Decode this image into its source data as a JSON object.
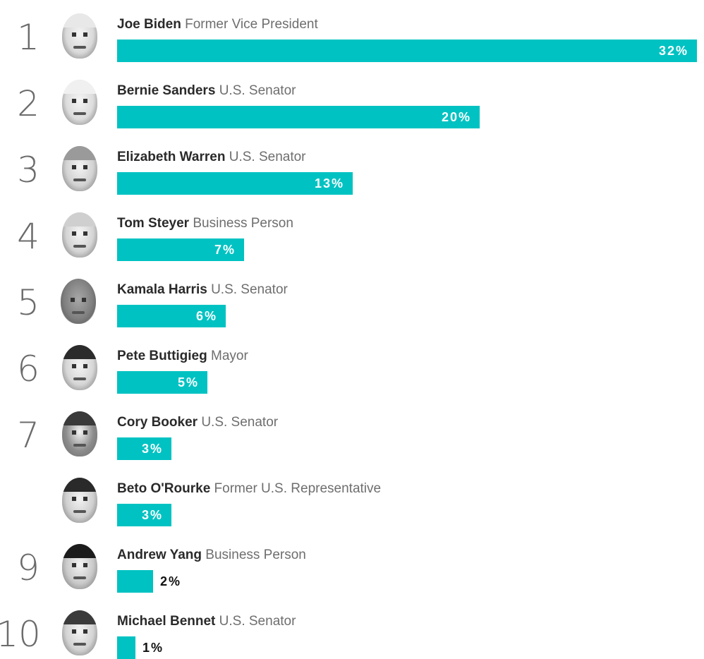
{
  "colors": {
    "bar": "#00c2c2",
    "rank": "#6b6b6b",
    "name": "#2a2a2a",
    "role": "#6e6e6e"
  },
  "chart_data": {
    "type": "bar",
    "orientation": "horizontal",
    "title": "",
    "xlabel": "",
    "ylabel": "",
    "value_unit": "%",
    "xlim": [
      0,
      32
    ],
    "grid": false,
    "legend": "none",
    "rows": [
      {
        "rank": "1",
        "name": "Joe Biden",
        "role": "Former Vice President",
        "value": 32,
        "label": "32%",
        "icon": "joe-biden-portrait-icon"
      },
      {
        "rank": "2",
        "name": "Bernie Sanders",
        "role": "U.S. Senator",
        "value": 20,
        "label": "20%",
        "icon": "bernie-sanders-portrait-icon"
      },
      {
        "rank": "3",
        "name": "Elizabeth Warren",
        "role": "U.S. Senator",
        "value": 13,
        "label": "13%",
        "icon": "elizabeth-warren-portrait-icon"
      },
      {
        "rank": "4",
        "name": "Tom Steyer",
        "role": "Business Person",
        "value": 7,
        "label": "7%",
        "icon": "tom-steyer-portrait-icon"
      },
      {
        "rank": "5",
        "name": "Kamala Harris",
        "role": "U.S. Senator",
        "value": 6,
        "label": "6%",
        "icon": "kamala-harris-portrait-icon"
      },
      {
        "rank": "6",
        "name": "Pete Buttigieg",
        "role": "Mayor",
        "value": 5,
        "label": "5%",
        "icon": "pete-buttigieg-portrait-icon"
      },
      {
        "rank": "7",
        "name": "Cory Booker",
        "role": "U.S. Senator",
        "value": 3,
        "label": "3%",
        "icon": "cory-booker-portrait-icon"
      },
      {
        "rank": "",
        "name": "Beto O'Rourke",
        "role": "Former U.S. Representative",
        "value": 3,
        "label": "3%",
        "icon": "beto-orourke-portrait-icon"
      },
      {
        "rank": "9",
        "name": "Andrew Yang",
        "role": "Business Person",
        "value": 2,
        "label": "2%",
        "icon": "andrew-yang-portrait-icon"
      },
      {
        "rank": "10",
        "name": "Michael Bennet",
        "role": "U.S. Senator",
        "value": 1,
        "label": "1%",
        "icon": "michael-bennet-portrait-icon"
      }
    ]
  }
}
